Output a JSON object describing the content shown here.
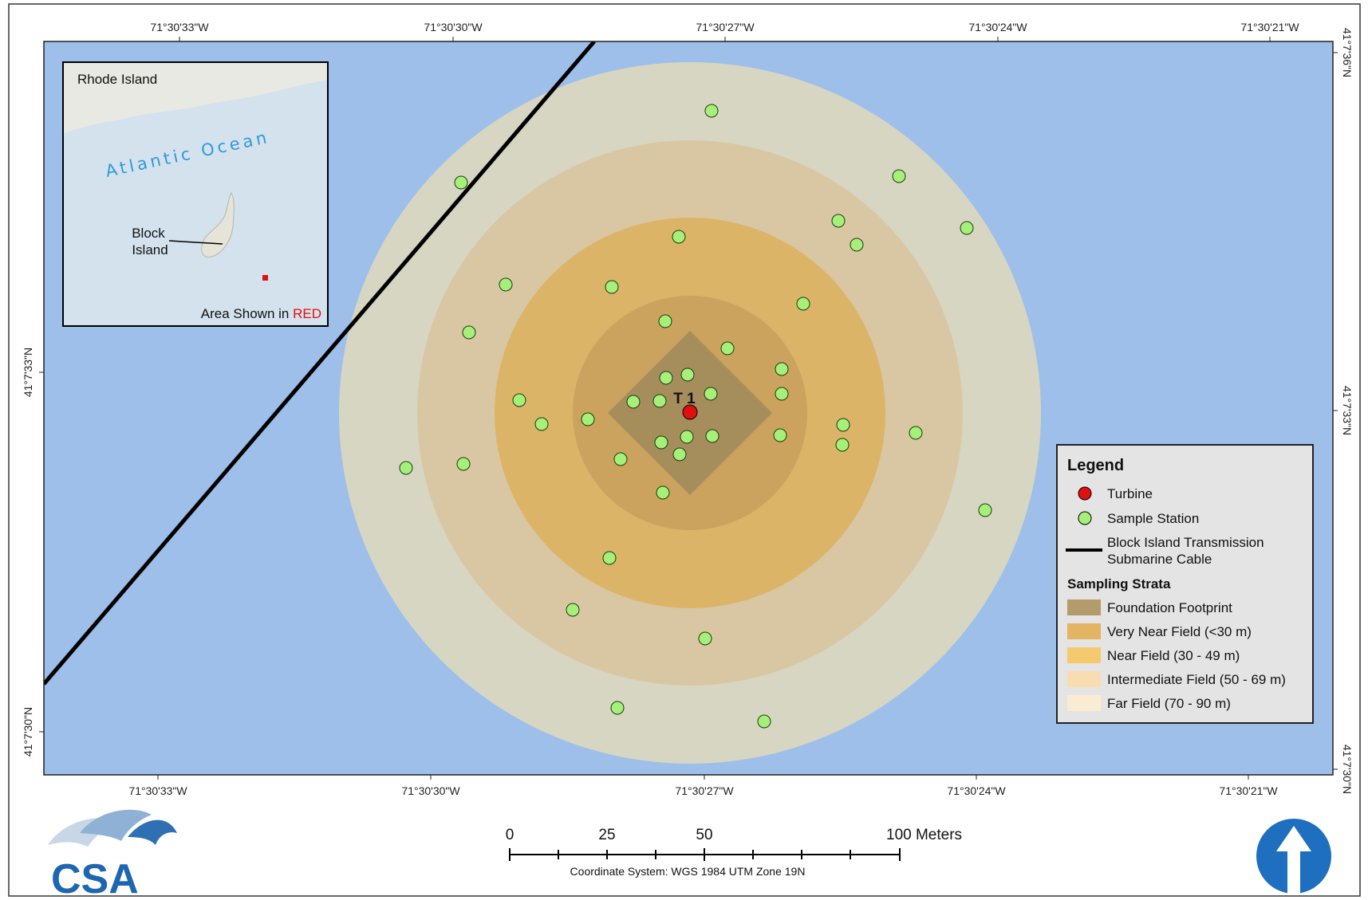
{
  "map": {
    "turbine_label": "T 1",
    "colors": {
      "water": "#9dbfea",
      "far_field": "#d7d6c2",
      "intermediate_field": "#d9c7a3",
      "near_field": "#dbb468",
      "very_near_field": "#cba35e",
      "foundation_footprint": "#a58d5c",
      "sample_station": "#a6f07a",
      "turbine": "#e01010",
      "cable": "#000000"
    }
  },
  "axes": {
    "top_lon_labels": [
      "71°30'33\"W",
      "71°30'30\"W",
      "71°30'27\"W",
      "71°30'24\"W",
      "71°30'21\"W"
    ],
    "bottom_lon_labels": [
      "71°30'33\"W",
      "71°30'30\"W",
      "71°30'27\"W",
      "71°30'24\"W",
      "71°30'21\"W"
    ],
    "left_lat_labels": [
      "41°7'33\"N",
      "41°7'30\"N"
    ],
    "right_lat_labels": [
      "41°7'36\"N",
      "41°7'33\"N",
      "41°7'30\"N"
    ]
  },
  "inset": {
    "title": "Rhode Island",
    "ocean_label": "Atlantic Ocean",
    "island_label_line1": "Block",
    "island_label_line2": "Island",
    "caption_prefix": "Area Shown in ",
    "caption_highlight": "RED"
  },
  "legend": {
    "title": "Legend",
    "items": [
      {
        "label": "Turbine",
        "icon": "turbine-red-dot-icon"
      },
      {
        "label": "Sample Station",
        "icon": "sample-station-green-dot-icon"
      },
      {
        "label_line1": "Block Island Transmission",
        "label_line2": "Submarine Cable",
        "icon": "cable-line-icon"
      }
    ],
    "strata_title": "Sampling Strata",
    "strata": [
      {
        "label": "Foundation Footprint",
        "color": "#b49b6b"
      },
      {
        "label": "Very Near Field (<30 m)",
        "color": "#e3b462"
      },
      {
        "label": "Near Field (30 - 49 m)",
        "color": "#f5c96d"
      },
      {
        "label": "Intermediate Field (50 - 69 m)",
        "color": "#f7ddb0"
      },
      {
        "label": "Far Field (70 - 90 m)",
        "color": "#faecd0"
      }
    ]
  },
  "scale_bar": {
    "labels": [
      "0",
      "25",
      "50",
      "100 Meters"
    ],
    "coordinate_system": "Coordinate System: WGS 1984 UTM Zone 19N"
  },
  "logo": {
    "text": "CSA"
  }
}
